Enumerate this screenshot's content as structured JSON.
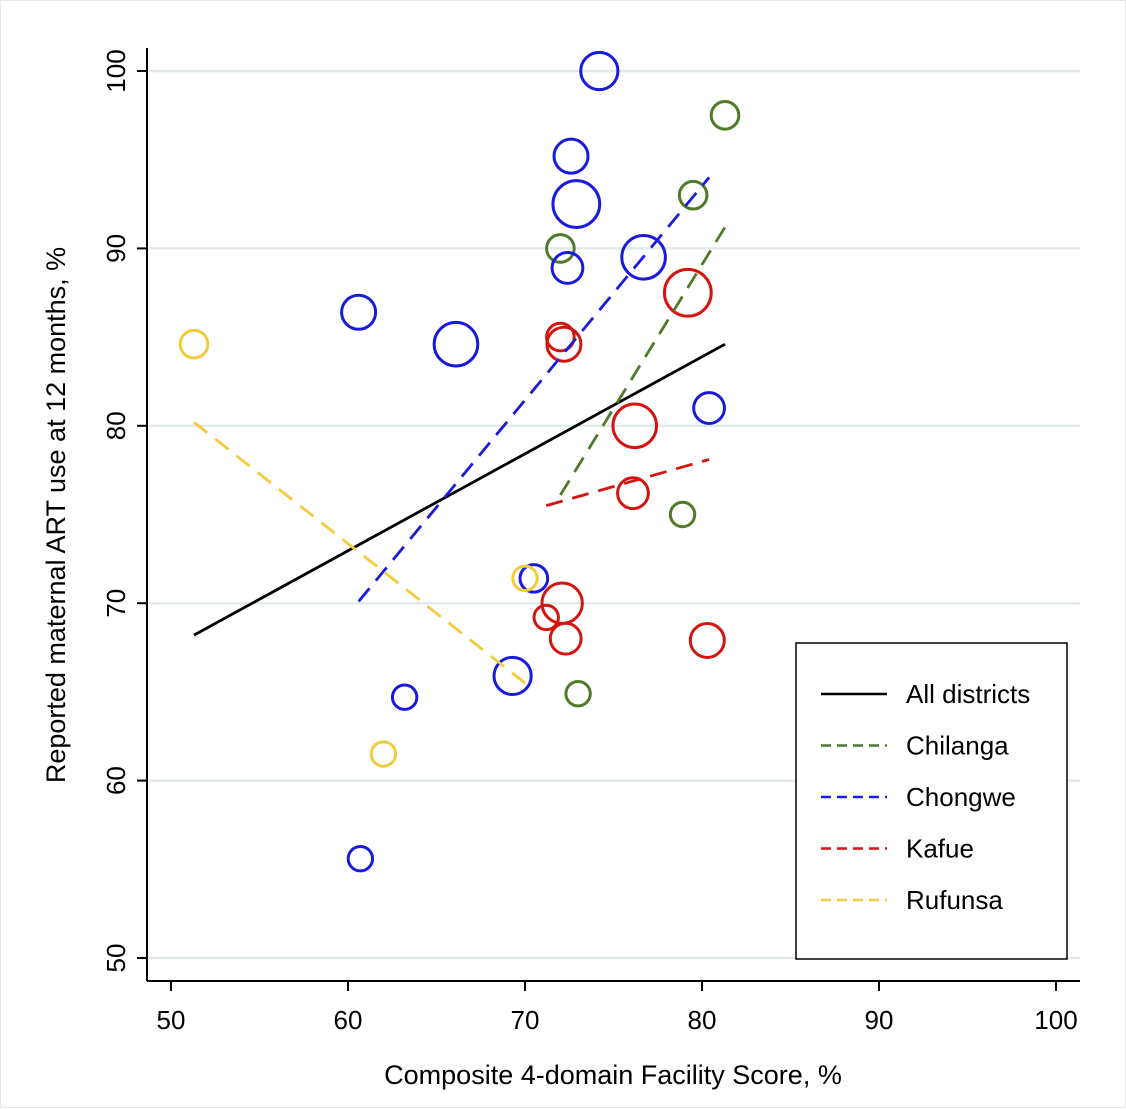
{
  "chart_data": {
    "type": "scatter",
    "xlabel": "Composite 4-domain Facility Score, %",
    "ylabel": "Reported maternal ART use at 12 months, %",
    "xlim": [
      49,
      101
    ],
    "ylim": [
      48.5,
      101.3
    ],
    "xticks": [
      50,
      60,
      70,
      80,
      90,
      100
    ],
    "yticks": [
      50,
      60,
      70,
      80,
      90,
      100
    ],
    "grid": "horizontal",
    "legend_position": "bottom-right",
    "colors": {
      "All districts": "#000000",
      "Chilanga": "#4f7a28",
      "Chongwe": "#1a1adb",
      "Kafue": "#d4150f",
      "Rufunsa": "#f2cc3a"
    },
    "series": [
      {
        "name": "Chilanga",
        "points": [
          {
            "x": 72.0,
            "y": 90.0,
            "size": 0.8
          },
          {
            "x": 79.5,
            "y": 93.0,
            "size": 0.8
          },
          {
            "x": 81.3,
            "y": 97.5,
            "size": 0.8
          },
          {
            "x": 78.9,
            "y": 75.0,
            "size": 0.7
          },
          {
            "x": 73.0,
            "y": 64.9,
            "size": 0.7
          }
        ]
      },
      {
        "name": "Chongwe",
        "points": [
          {
            "x": 74.2,
            "y": 100.0,
            "size": 1.1
          },
          {
            "x": 72.6,
            "y": 95.2,
            "size": 1.0
          },
          {
            "x": 72.9,
            "y": 92.5,
            "size": 1.4
          },
          {
            "x": 72.4,
            "y": 88.9,
            "size": 0.9
          },
          {
            "x": 76.7,
            "y": 89.5,
            "size": 1.3
          },
          {
            "x": 60.6,
            "y": 86.4,
            "size": 1.0
          },
          {
            "x": 66.1,
            "y": 84.6,
            "size": 1.3
          },
          {
            "x": 80.4,
            "y": 81.0,
            "size": 0.9
          },
          {
            "x": 70.5,
            "y": 71.4,
            "size": 0.8
          },
          {
            "x": 69.3,
            "y": 65.9,
            "size": 1.1
          },
          {
            "x": 63.2,
            "y": 64.7,
            "size": 0.7
          },
          {
            "x": 60.7,
            "y": 55.6,
            "size": 0.7
          }
        ]
      },
      {
        "name": "Kafue",
        "points": [
          {
            "x": 72.0,
            "y": 85.0,
            "size": 0.8
          },
          {
            "x": 72.2,
            "y": 84.6,
            "size": 1.0
          },
          {
            "x": 79.2,
            "y": 87.5,
            "size": 1.4
          },
          {
            "x": 76.2,
            "y": 80.0,
            "size": 1.3
          },
          {
            "x": 76.1,
            "y": 76.2,
            "size": 0.9
          },
          {
            "x": 72.1,
            "y": 70.0,
            "size": 1.2
          },
          {
            "x": 71.2,
            "y": 69.2,
            "size": 0.7
          },
          {
            "x": 72.3,
            "y": 68.0,
            "size": 0.9
          },
          {
            "x": 80.3,
            "y": 67.9,
            "size": 1.0
          }
        ]
      },
      {
        "name": "Rufunsa",
        "points": [
          {
            "x": 51.3,
            "y": 84.6,
            "size": 0.8
          },
          {
            "x": 70.0,
            "y": 71.4,
            "size": 0.7
          },
          {
            "x": 62.0,
            "y": 61.5,
            "size": 0.7
          }
        ]
      }
    ],
    "fit_lines": [
      {
        "name": "All districts",
        "x": [
          51.3,
          81.3
        ],
        "y": [
          68.2,
          84.6
        ],
        "dash": "solid"
      },
      {
        "name": "Chilanga",
        "x": [
          72.0,
          81.3
        ],
        "y": [
          76.1,
          91.2
        ],
        "dash": "dashed"
      },
      {
        "name": "Chongwe",
        "x": [
          60.6,
          80.4
        ],
        "y": [
          70.1,
          94.0
        ],
        "dash": "dashed"
      },
      {
        "name": "Kafue",
        "x": [
          71.2,
          80.4
        ],
        "y": [
          75.5,
          78.1
        ],
        "dash": "dashed"
      },
      {
        "name": "Rufunsa",
        "x": [
          51.3,
          70.0
        ],
        "y": [
          80.2,
          65.5
        ],
        "dash": "dashed"
      }
    ],
    "legend": [
      "All districts",
      "Chilanga",
      "Chongwe",
      "Kafue",
      "Rufunsa"
    ]
  }
}
